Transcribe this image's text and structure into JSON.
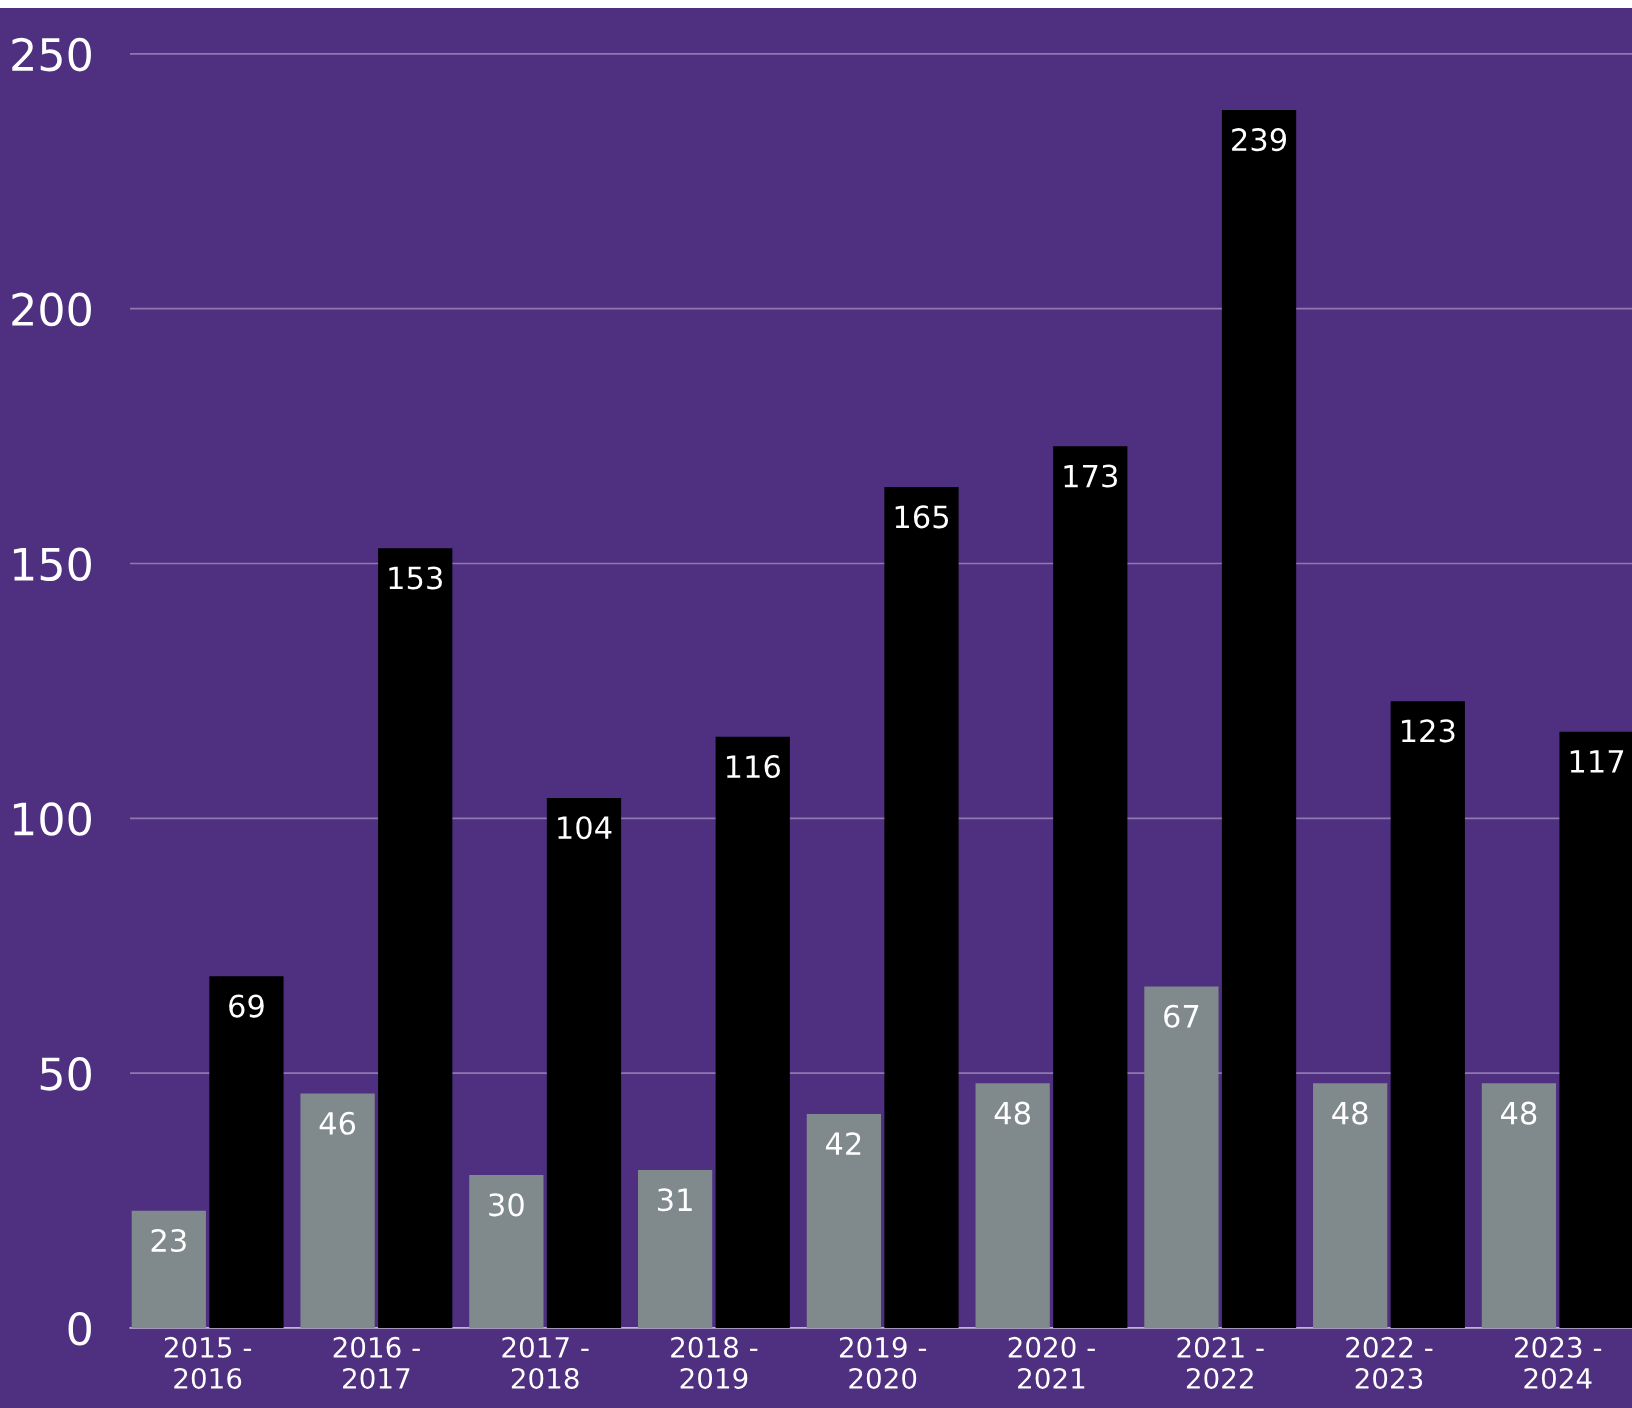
{
  "chart_data": {
    "type": "bar",
    "categories": [
      "2015 -\n2016",
      "2016 -\n2017",
      "2017 -\n2018",
      "2018 -\n2019",
      "2019 -\n2020",
      "2020 -\n2021",
      "2021 -\n2022",
      "2022 -\n2023",
      "2023 -\n2024"
    ],
    "series": [
      {
        "color": "#808a8d",
        "values": [
          23,
          46,
          30,
          31,
          42,
          48,
          67,
          48,
          48
        ]
      },
      {
        "color": "#000000",
        "values": [
          69,
          153,
          104,
          116,
          165,
          173,
          239,
          123,
          117
        ]
      }
    ],
    "ylim": [
      0,
      259
    ],
    "yticks": [
      0,
      50,
      100,
      150,
      200,
      250
    ],
    "grid": "y",
    "data_labels": true
  }
}
